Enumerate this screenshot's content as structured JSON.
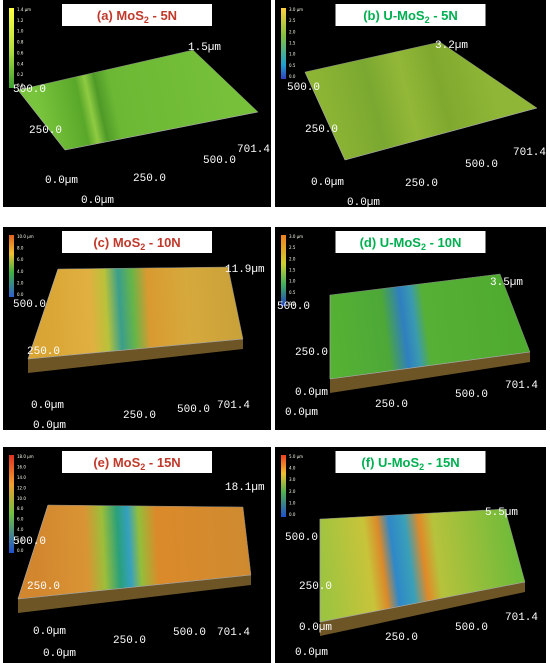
{
  "panels": [
    {
      "label": {
        "prefix": "(a) MoS",
        "sub": "2",
        "suffix": " - 5N"
      },
      "colorbar_ticks": [
        "1.4 µm",
        "1.2",
        "1.0",
        "0.8",
        "0.6",
        "0.4",
        "0.2",
        "0.0"
      ],
      "axis_labels": {
        "z_max": "1.5µm",
        "y_500": "500.0",
        "y_250": "250.0",
        "y_0": "0.0µm",
        "x_0": "0.0µm",
        "x_250": "250.0",
        "x_500": "500.0",
        "x_max": "701.4"
      }
    },
    {
      "label": {
        "prefix": "(b) U-MoS",
        "sub": "2",
        "suffix": " - 5N"
      },
      "colorbar_ticks": [
        "3.0 µm",
        "2.5",
        "2.0",
        "1.5",
        "1.0",
        "0.5",
        "0.0"
      ],
      "axis_labels": {
        "z_max": "3.2µm",
        "y_500": "500.0",
        "y_250": "250.0",
        "y_0": "0.0µm",
        "x_0": "0.0µm",
        "x_250": "250.0",
        "x_500": "500.0",
        "x_max": "701.4"
      }
    },
    {
      "label": {
        "prefix": "(c) MoS",
        "sub": "2",
        "suffix": " - 10N"
      },
      "colorbar_ticks": [
        "10.0 µm",
        "8.0",
        "6.0",
        "4.0",
        "2.0",
        "0.0"
      ],
      "axis_labels": {
        "z_max": "11.9µm",
        "y_500": "500.0",
        "y_250": "250.0",
        "y_0": "0.0µm",
        "x_0": "0.0µm",
        "x_250": "250.0",
        "x_500": "500.0",
        "x_max": "701.4"
      }
    },
    {
      "label": {
        "prefix": "(d) U-MoS",
        "sub": "2",
        "suffix": " - 10N"
      },
      "colorbar_ticks": [
        "3.0 µm",
        "2.5",
        "2.0",
        "1.5",
        "1.0",
        "0.5",
        "0.0"
      ],
      "axis_labels": {
        "z_max": "3.5µm",
        "y_500": "500.0",
        "y_250": "250.0",
        "y_0": "0.0µm",
        "x_0": "0.0µm",
        "x_250": "250.0",
        "x_500": "500.0",
        "x_max": "701.4"
      }
    },
    {
      "label": {
        "prefix": "(e) MoS",
        "sub": "2",
        "suffix": " - 15N"
      },
      "colorbar_ticks": [
        "18.0 µm",
        "16.0",
        "14.0",
        "12.0",
        "10.0",
        "8.0",
        "6.0",
        "4.0",
        "2.0",
        "0.0"
      ],
      "axis_labels": {
        "z_max": "18.1µm",
        "y_500": "500.0",
        "y_250": "250.0",
        "y_0": "0.0µm",
        "x_0": "0.0µm",
        "x_250": "250.0",
        "x_500": "500.0",
        "x_max": "701.4"
      }
    },
    {
      "label": {
        "prefix": "(f) U-MoS",
        "sub": "2",
        "suffix": " - 15N"
      },
      "colorbar_ticks": [
        "5.0 µm",
        "4.0",
        "3.0",
        "2.0",
        "1.0",
        "0.0"
      ],
      "axis_labels": {
        "z_max": "5.5µm",
        "y_500": "500.0",
        "y_250": "250.0",
        "y_0": "0.0µm",
        "x_0": "0.0µm",
        "x_250": "250.0",
        "x_500": "500.0",
        "x_max": "701.4"
      }
    }
  ]
}
